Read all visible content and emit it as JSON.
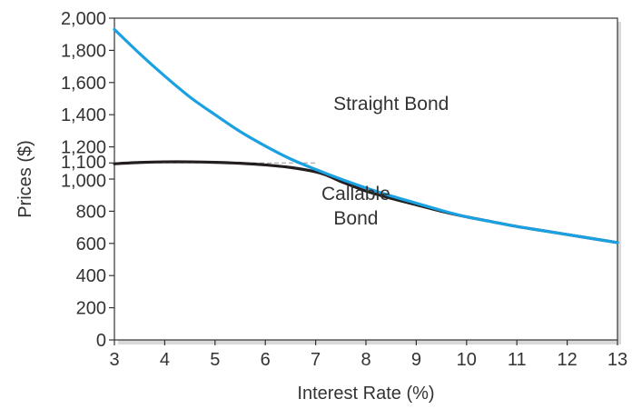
{
  "chart_data": {
    "type": "line",
    "xlabel": "Interest Rate (%)",
    "ylabel": "Prices ($)",
    "xlim": [
      3,
      13
    ],
    "ylim": [
      0,
      2000
    ],
    "x_ticks": [
      3,
      4,
      5,
      6,
      7,
      8,
      9,
      10,
      11,
      12,
      13
    ],
    "x_tick_labels": [
      "3",
      "4",
      "5",
      "6",
      "7",
      "8",
      "9",
      "10",
      "11",
      "12",
      "13"
    ],
    "y_ticks": [
      0,
      200,
      400,
      600,
      800,
      1000,
      1100,
      1200,
      1400,
      1600,
      1800,
      2000
    ],
    "y_tick_labels": [
      "0",
      "200",
      "400",
      "600",
      "800",
      "1,000",
      "1,100",
      "1,200",
      "1,400",
      "1,600",
      "1,800",
      "2,000"
    ],
    "grid": false,
    "reference_line": {
      "y": 1100,
      "x_from": 3,
      "x_to": 7,
      "style": "dashed",
      "color": "#999999"
    },
    "series": [
      {
        "key": "straight",
        "color": "#1ba1e2",
        "x": [
          3,
          3.5,
          4,
          4.5,
          5,
          5.5,
          6,
          6.5,
          7,
          7.5,
          8,
          8.5,
          9,
          9.5,
          10,
          10.5,
          11,
          11.5,
          12,
          12.5,
          13
        ],
        "y": [
          1930,
          1780,
          1640,
          1510,
          1400,
          1295,
          1205,
          1125,
          1060,
          1000,
          945,
          895,
          850,
          805,
          765,
          735,
          705,
          680,
          655,
          630,
          605
        ]
      },
      {
        "key": "callable",
        "color": "#231f20",
        "x": [
          3,
          3.5,
          4,
          4.5,
          5,
          5.5,
          6,
          6.5,
          7,
          7.25,
          7.5,
          7.75,
          8,
          8.5,
          9,
          9.5,
          10,
          10.5,
          11,
          11.5,
          12,
          12.5,
          13
        ],
        "y": [
          1095,
          1103,
          1107,
          1107,
          1104,
          1098,
          1088,
          1072,
          1045,
          1020,
          985,
          955,
          925,
          880,
          840,
          800,
          765,
          735,
          705,
          680,
          655,
          630,
          605
        ]
      }
    ],
    "annotations": [
      {
        "id": "straight",
        "lines": [
          "Straight Bond"
        ],
        "x": 8.5,
        "y": 1430
      },
      {
        "id": "callable",
        "lines": [
          "Callable",
          "Bond"
        ],
        "x": 7.8,
        "y": 870
      }
    ]
  }
}
